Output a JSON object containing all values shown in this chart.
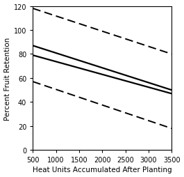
{
  "title": "",
  "xlabel": "Heat Units Accumulated After Planting",
  "ylabel": "Percent Fruit Retention",
  "xlim": [
    500,
    3500
  ],
  "ylim": [
    0,
    120
  ],
  "yticks": [
    0,
    20,
    40,
    60,
    80,
    100,
    120
  ],
  "xticks": [
    500,
    1000,
    1500,
    2000,
    2500,
    3000,
    3500
  ],
  "lines": [
    {
      "x": [
        500,
        3500
      ],
      "y": [
        118,
        80
      ],
      "style": "dashed",
      "color": "#000000",
      "lw": 1.4
    },
    {
      "x": [
        500,
        3500
      ],
      "y": [
        87,
        50
      ],
      "style": "solid",
      "color": "#000000",
      "lw": 1.6
    },
    {
      "x": [
        500,
        3500
      ],
      "y": [
        79,
        47
      ],
      "style": "solid",
      "color": "#000000",
      "lw": 1.6
    },
    {
      "x": [
        500,
        3500
      ],
      "y": [
        57,
        18
      ],
      "style": "dashed",
      "color": "#000000",
      "lw": 1.4
    }
  ],
  "xlabel_fontsize": 7.5,
  "ylabel_fontsize": 7.5,
  "tick_fontsize": 7,
  "background_color": "#ffffff",
  "figsize": [
    2.65,
    2.55
  ],
  "dpi": 100
}
